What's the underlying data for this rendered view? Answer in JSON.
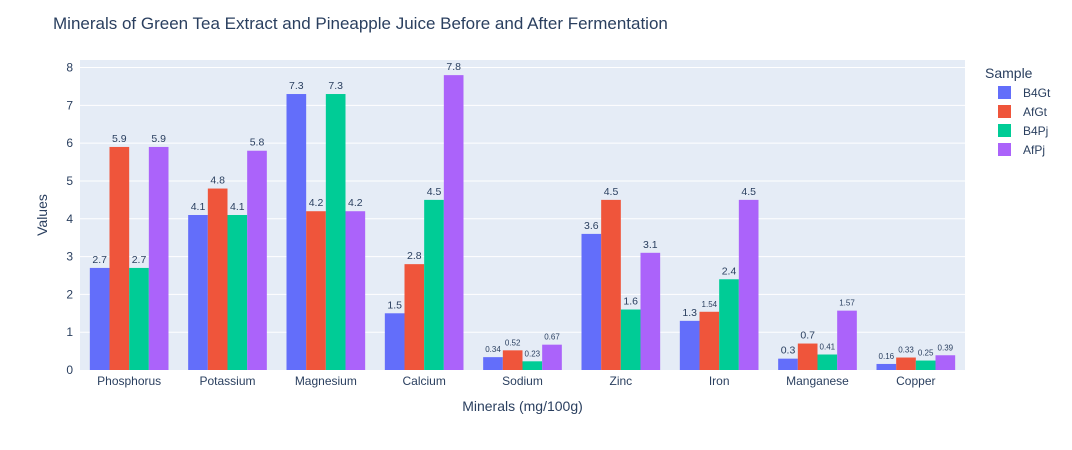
{
  "chart_data": {
    "type": "bar",
    "title": "Minerals of Green Tea Extract and Pineapple Juice Before and After Fermentation",
    "xlabel": "Minerals (mg/100g)",
    "ylabel": "Values",
    "ylim": [
      0,
      8.2
    ],
    "yticks": [
      0,
      1,
      2,
      3,
      4,
      5,
      6,
      7,
      8
    ],
    "grid": true,
    "barmode": "group",
    "legend": {
      "title": "Sample",
      "placement": "right"
    },
    "categories": [
      "Phosphorus",
      "Potassium",
      "Magnesium",
      "Calcium",
      "Sodium",
      "Zinc",
      "Iron",
      "Manganese",
      "Copper"
    ],
    "series": [
      {
        "name": "B4Gt",
        "color": "#636efa",
        "values": [
          2.7,
          4.1,
          7.3,
          1.5,
          0.34,
          3.6,
          1.3,
          0.3,
          0.16
        ],
        "labels": [
          "2.7",
          "4.1",
          "7.3",
          "1.5",
          "0.34",
          "3.6",
          "1.3",
          "0.3",
          "0.16"
        ]
      },
      {
        "name": "AfGt",
        "color": "#ef553b",
        "values": [
          5.9,
          4.8,
          4.2,
          2.8,
          0.52,
          4.5,
          1.54,
          0.7,
          0.33
        ],
        "labels": [
          "5.9",
          "4.8",
          "4.2",
          "2.8",
          "0.52",
          "4.5",
          "1.54",
          "0.7",
          "0.33"
        ]
      },
      {
        "name": "B4Pj",
        "color": "#00cc96",
        "values": [
          2.7,
          4.1,
          7.3,
          4.5,
          0.23,
          1.6,
          2.4,
          0.41,
          0.25
        ],
        "labels": [
          "2.7",
          "4.1",
          "7.3",
          "4.5",
          "0.23",
          "1.6",
          "2.4",
          "0.41",
          "0.25"
        ]
      },
      {
        "name": "AfPj",
        "color": "#ab63fa",
        "values": [
          5.9,
          5.8,
          4.2,
          7.8,
          0.67,
          3.1,
          4.5,
          1.57,
          0.39
        ],
        "labels": [
          "5.9",
          "5.8",
          "4.2",
          "7.8",
          "0.67",
          "3.1",
          "4.5",
          "1.57",
          "0.39"
        ]
      }
    ]
  }
}
